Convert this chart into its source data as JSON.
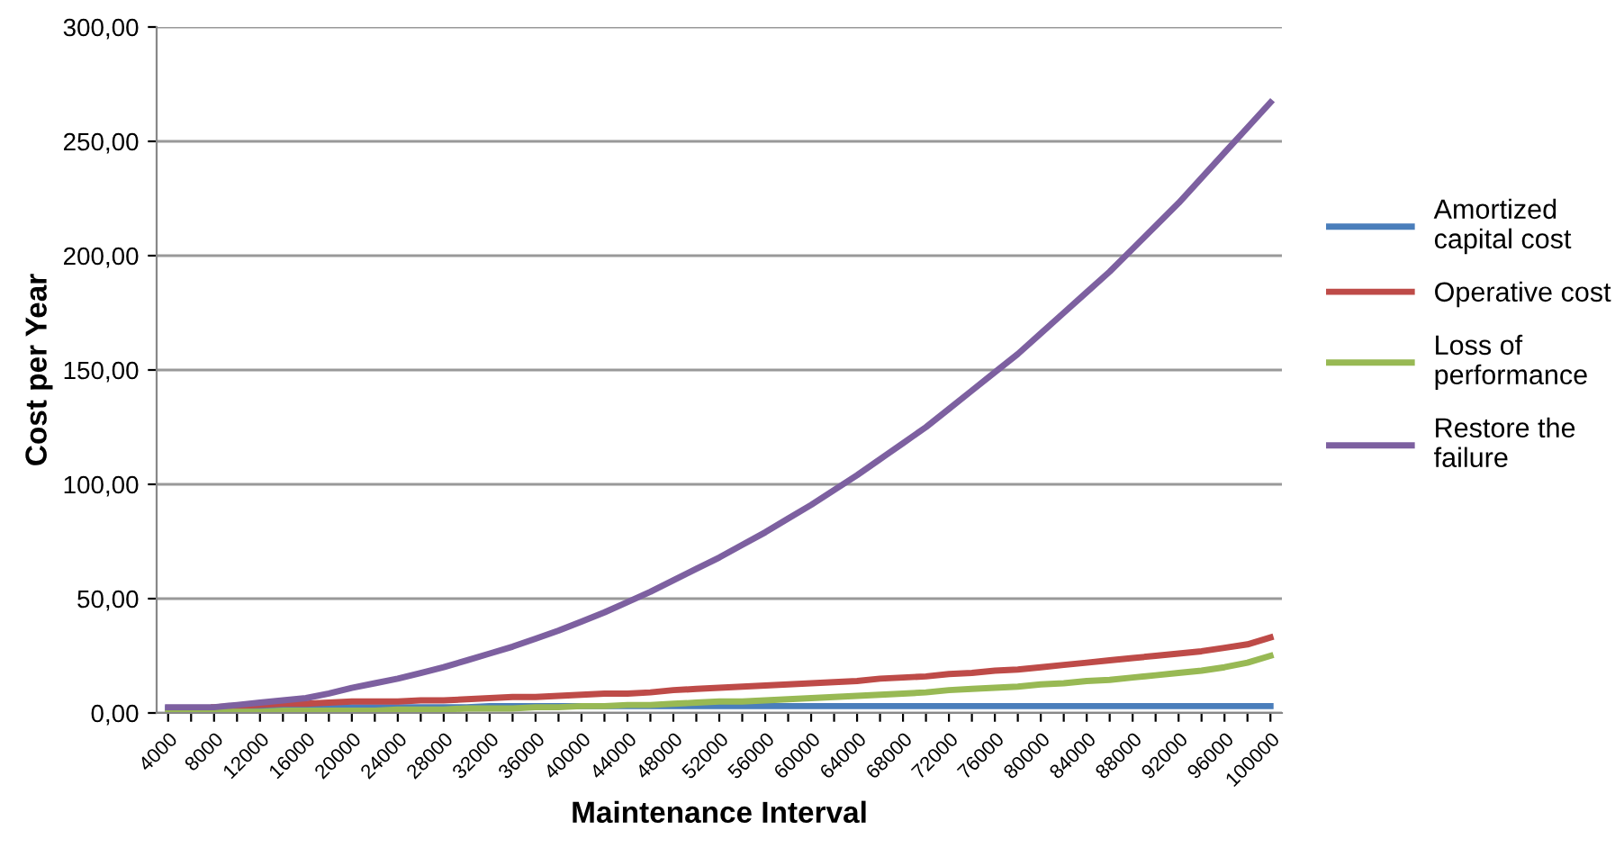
{
  "chart_data": {
    "type": "line",
    "xlabel": "Maintenance Interval",
    "ylabel": "Cost per Year",
    "categories": [
      "4000",
      null,
      "8000",
      null,
      "12000",
      null,
      "16000",
      null,
      "20000",
      null,
      "24000",
      null,
      "28000",
      null,
      "32000",
      null,
      "36000",
      null,
      "40000",
      null,
      "44000",
      null,
      "48000",
      null,
      "52000",
      null,
      "56000",
      null,
      "60000",
      null,
      "64000",
      null,
      "68000",
      null,
      "72000",
      null,
      "76000",
      null,
      "80000",
      null,
      "84000",
      null,
      "88000",
      null,
      "92000",
      null,
      "96000",
      null,
      "100000"
    ],
    "series": [
      {
        "name": "Amortized capital cost",
        "color": "#4a7ebb",
        "values": [
          2,
          2,
          2,
          2,
          2,
          2,
          2.5,
          2.5,
          2.5,
          2.5,
          2.5,
          2.5,
          2.5,
          2.5,
          3,
          3,
          3,
          3,
          3,
          3,
          3,
          3,
          3,
          3,
          3,
          3,
          3,
          3,
          3,
          3,
          3,
          3,
          3,
          3,
          3,
          3,
          3,
          3,
          3,
          3,
          3,
          3,
          3,
          3,
          3,
          3,
          3,
          3,
          3
        ]
      },
      {
        "name": "Operative cost",
        "color": "#be4b48",
        "values": [
          null,
          null,
          2.5,
          3,
          3.5,
          4,
          4,
          4.5,
          5,
          5,
          5,
          5.5,
          5.5,
          6,
          6.5,
          7,
          7,
          7.5,
          8,
          8.5,
          8.5,
          9,
          10,
          10.5,
          11,
          11.5,
          12,
          12.5,
          13,
          13.5,
          14,
          15,
          15.5,
          16,
          17,
          17.5,
          18.5,
          19,
          20,
          21,
          22,
          23,
          24,
          25,
          26,
          27,
          28.5,
          30,
          33
        ]
      },
      {
        "name": "Loss of performance",
        "color": "#98b954",
        "values": [
          0.5,
          0.5,
          0.5,
          0.5,
          0.5,
          1,
          1,
          1,
          1,
          1,
          1.5,
          1.5,
          1.5,
          2,
          2,
          2,
          2.5,
          2.5,
          3,
          3,
          3.5,
          3.5,
          4,
          4.5,
          5,
          5,
          5.5,
          6,
          6.5,
          7,
          7.5,
          8,
          8.5,
          9,
          10,
          10.5,
          11,
          11.5,
          12.5,
          13,
          14,
          14.5,
          15.5,
          16.5,
          17.5,
          18.5,
          20,
          22,
          25
        ]
      },
      {
        "name": "Restore the failure",
        "color": "#7d60a0",
        "values": [
          2.5,
          2.5,
          2.5,
          3.5,
          4.5,
          5.5,
          6.5,
          8.5,
          11,
          13,
          15,
          17.5,
          20,
          23,
          26,
          29,
          32.5,
          36,
          40,
          44,
          48.5,
          53,
          58,
          63,
          68,
          73.5,
          79,
          85,
          91,
          97.5,
          104,
          111,
          118,
          125,
          133,
          141,
          149,
          157,
          166,
          175,
          184,
          193,
          203,
          213,
          223,
          234,
          245,
          256,
          267
        ]
      }
    ],
    "ylim": [
      0,
      300
    ],
    "yticks": [
      {
        "value": 0,
        "label": "0,00"
      },
      {
        "value": 50,
        "label": "50,00"
      },
      {
        "value": 100,
        "label": "100,00"
      },
      {
        "value": 150,
        "label": "150,00"
      },
      {
        "value": 200,
        "label": "200,00"
      },
      {
        "value": 250,
        "label": "250,00"
      },
      {
        "value": 300,
        "label": "300,00"
      }
    ],
    "grid": "y",
    "legend": "right",
    "marker": "none",
    "line_style": "solid"
  }
}
